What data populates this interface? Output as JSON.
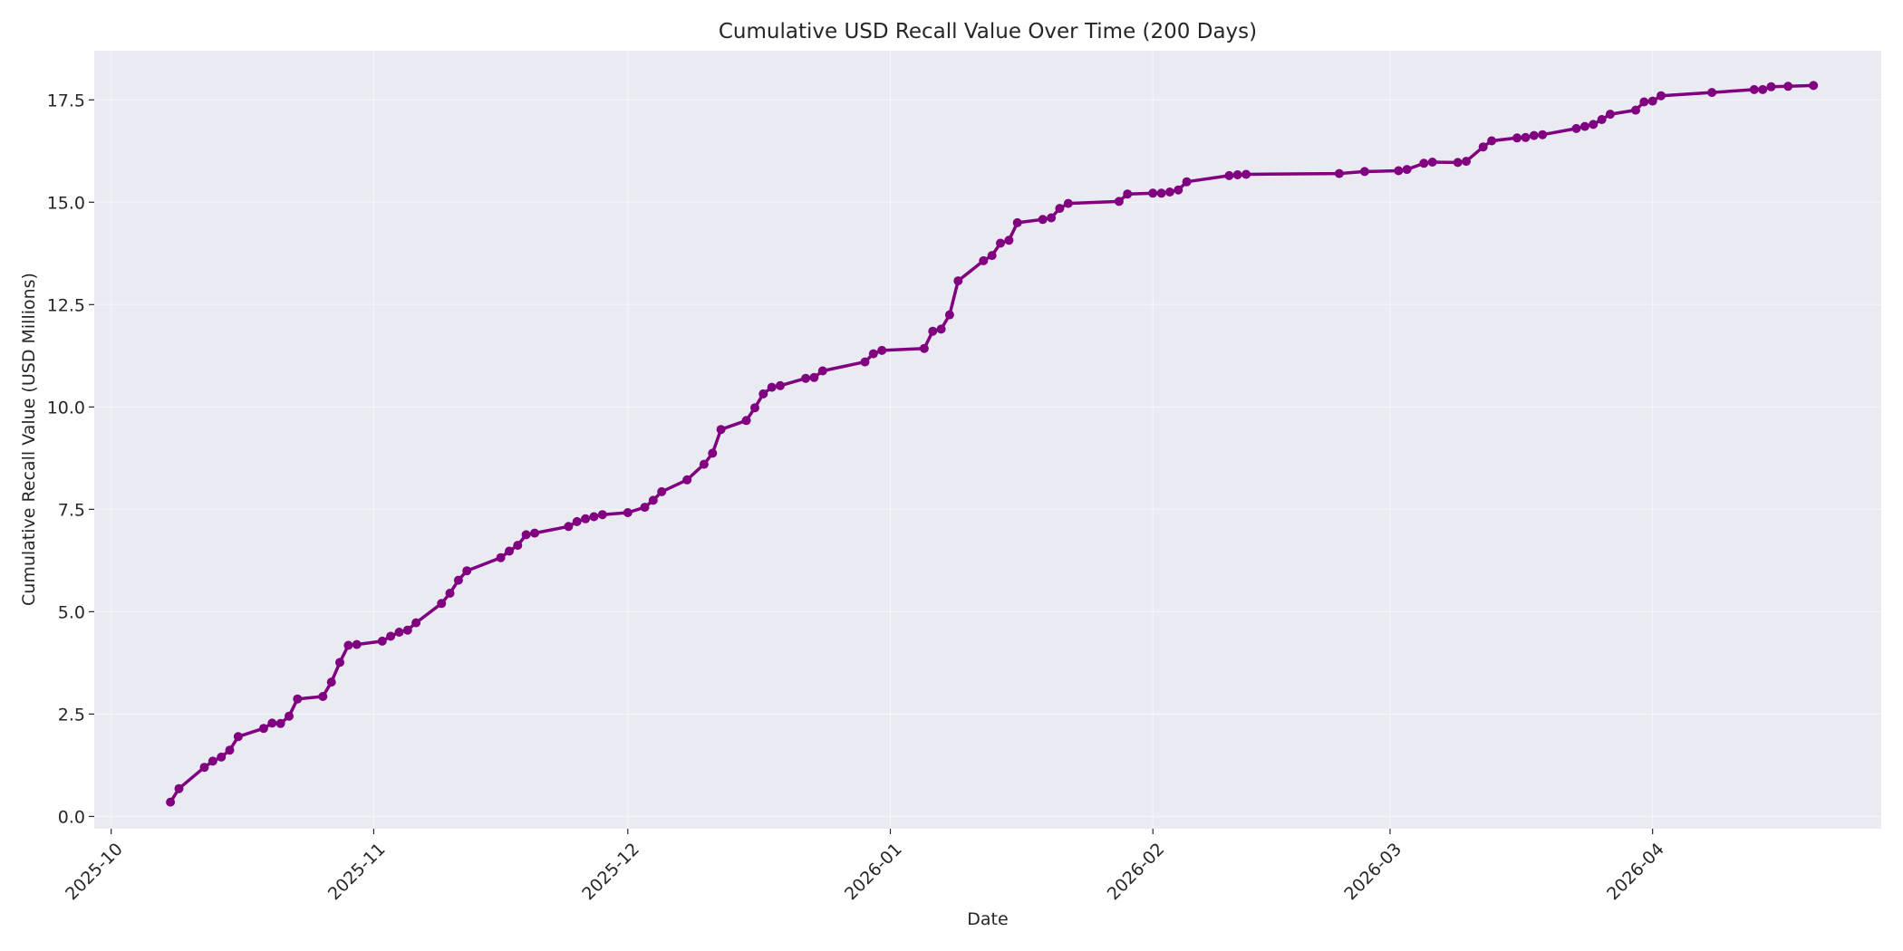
{
  "chart_data": {
    "type": "line",
    "title": "Cumulative USD Recall Value Over Time (200 Days)",
    "xlabel": "Date",
    "ylabel": "Cumulative Recall Value (USD Millions)",
    "xlim": [
      "2025-09-29",
      "2026-04-28"
    ],
    "ylim": [
      -0.3,
      18.7
    ],
    "x_ticks": [
      "2025-10",
      "2025-11",
      "2025-12",
      "2026-01",
      "2026-02",
      "2026-03",
      "2026-04"
    ],
    "y_ticks": [
      "0.0",
      "2.5",
      "5.0",
      "7.5",
      "10.0",
      "12.5",
      "15.0",
      "17.5"
    ],
    "grid": true,
    "colors": {
      "line": "#800080",
      "background": "#eaeaf2",
      "grid": "#ffffff"
    },
    "series": [
      {
        "x": [
          "2025-10-08",
          "2025-10-09",
          "2025-10-12",
          "2025-10-13",
          "2025-10-14",
          "2025-10-15",
          "2025-10-16",
          "2025-10-19",
          "2025-10-20",
          "2025-10-21",
          "2025-10-22",
          "2025-10-23",
          "2025-10-26",
          "2025-10-27",
          "2025-10-28",
          "2025-10-29",
          "2025-10-30",
          "2025-11-02",
          "2025-11-03",
          "2025-11-04",
          "2025-11-05",
          "2025-11-06",
          "2025-11-09",
          "2025-11-10",
          "2025-11-11",
          "2025-11-12",
          "2025-11-16",
          "2025-11-17",
          "2025-11-18",
          "2025-11-19",
          "2025-11-20",
          "2025-11-24",
          "2025-11-25",
          "2025-11-26",
          "2025-11-27",
          "2025-11-28",
          "2025-12-01",
          "2025-12-03",
          "2025-12-04",
          "2025-12-05",
          "2025-12-08",
          "2025-12-10",
          "2025-12-11",
          "2025-12-12",
          "2025-12-15",
          "2025-12-16",
          "2025-12-17",
          "2025-12-18",
          "2025-12-19",
          "2025-12-22",
          "2025-12-23",
          "2025-12-24",
          "2025-12-29",
          "2025-12-30",
          "2025-12-31",
          "2026-01-05",
          "2026-01-06",
          "2026-01-07",
          "2026-01-08",
          "2026-01-09",
          "2026-01-12",
          "2026-01-13",
          "2026-01-14",
          "2026-01-15",
          "2026-01-16",
          "2026-01-19",
          "2026-01-20",
          "2026-01-21",
          "2026-01-22",
          "2026-01-28",
          "2026-01-29",
          "2026-02-01",
          "2026-02-02",
          "2026-02-03",
          "2026-02-04",
          "2026-02-05",
          "2026-02-10",
          "2026-02-11",
          "2026-02-12",
          "2026-02-23",
          "2026-02-26",
          "2026-03-02",
          "2026-03-03",
          "2026-03-05",
          "2026-03-06",
          "2026-03-09",
          "2026-03-10",
          "2026-03-12",
          "2026-03-13",
          "2026-03-16",
          "2026-03-17",
          "2026-03-18",
          "2026-03-19",
          "2026-03-23",
          "2026-03-24",
          "2026-03-25",
          "2026-03-26",
          "2026-03-27",
          "2026-03-30",
          "2026-03-31",
          "2026-04-01",
          "2026-04-02",
          "2026-04-08",
          "2026-04-13",
          "2026-04-14",
          "2026-04-15",
          "2026-04-17",
          "2026-04-20"
        ],
        "y": [
          0.35,
          0.68,
          1.2,
          1.35,
          1.45,
          1.62,
          1.95,
          2.15,
          2.28,
          2.27,
          2.45,
          2.87,
          2.93,
          3.28,
          3.76,
          4.18,
          4.2,
          4.28,
          4.4,
          4.5,
          4.55,
          4.73,
          5.2,
          5.45,
          5.77,
          6.0,
          6.32,
          6.48,
          6.62,
          6.88,
          6.92,
          7.08,
          7.2,
          7.27,
          7.32,
          7.37,
          7.42,
          7.55,
          7.72,
          7.93,
          8.22,
          8.6,
          8.87,
          9.45,
          9.67,
          9.98,
          10.32,
          10.48,
          10.52,
          10.7,
          10.72,
          10.88,
          11.1,
          11.3,
          11.38,
          11.43,
          11.85,
          11.9,
          12.25,
          13.08,
          13.57,
          13.7,
          14.0,
          14.07,
          14.5,
          14.58,
          14.62,
          14.85,
          14.97,
          15.02,
          15.2,
          15.22,
          15.22,
          15.25,
          15.3,
          15.5,
          15.65,
          15.67,
          15.68,
          15.7,
          15.75,
          15.77,
          15.8,
          15.95,
          15.98,
          15.97,
          16.0,
          16.35,
          16.5,
          16.57,
          16.58,
          16.63,
          16.65,
          16.8,
          16.85,
          16.9,
          17.02,
          17.15,
          17.25,
          17.45,
          17.47,
          17.6,
          17.68,
          17.75,
          17.75,
          17.82,
          17.83,
          17.85
        ]
      }
    ]
  }
}
